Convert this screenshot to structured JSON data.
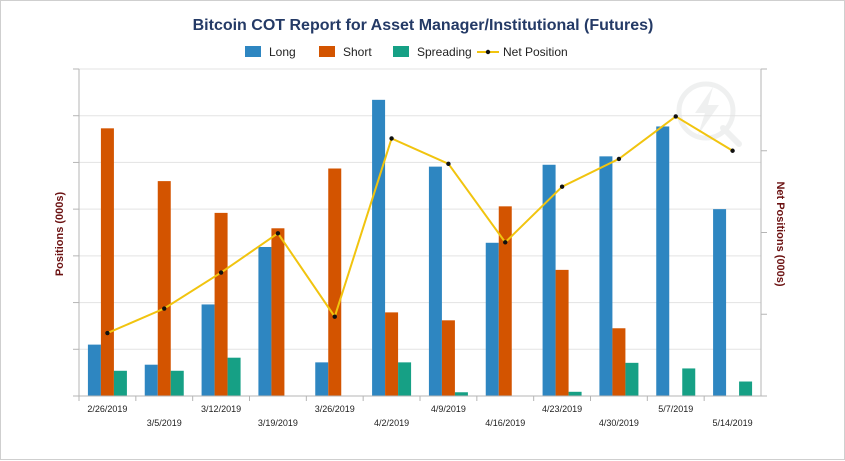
{
  "chart_data": {
    "type": "bar",
    "title": "Bitcoin COT Report for Asset Manager/Institutional (Futures)",
    "xlabel": "",
    "ylabel": "Positions (000s)",
    "y2label": "Net Positions (000s)",
    "categories": [
      "2/26/2019",
      "3/5/2019",
      "3/12/2019",
      "3/19/2019",
      "3/26/2019",
      "4/2/2019",
      "4/9/2019",
      "4/16/2019",
      "4/23/2019",
      "4/30/2019",
      "5/7/2019",
      "5/14/2019"
    ],
    "ylim": [
      0,
      7
    ],
    "y2lim": [
      -3,
      1
    ],
    "series": [
      {
        "name": "Long",
        "type": "bar",
        "color": "#2e86c1",
        "values": [
          1.1,
          0.67,
          1.96,
          3.19,
          0.72,
          6.34,
          4.91,
          3.28,
          4.95,
          5.13,
          5.77,
          4.0
        ]
      },
      {
        "name": "Short",
        "type": "bar",
        "color": "#d35400",
        "values": [
          5.73,
          4.6,
          3.92,
          3.59,
          4.87,
          1.79,
          1.62,
          4.06,
          2.7,
          1.45,
          0.0,
          0.0
        ]
      },
      {
        "name": "Spreading",
        "type": "bar",
        "color": "#16a085",
        "values": [
          0.54,
          0.54,
          0.82,
          0.0,
          0.0,
          0.72,
          0.08,
          0.0,
          0.09,
          0.71,
          0.59,
          0.31
        ]
      },
      {
        "name": "Net Position",
        "type": "line",
        "color": "#f1c40f",
        "axis": "right",
        "values": [
          -2.23,
          -1.93,
          -1.49,
          -1.01,
          -2.03,
          0.15,
          -0.16,
          -1.12,
          -0.44,
          -0.1,
          0.42,
          0.0
        ]
      }
    ],
    "grid": true,
    "legend": "top-center",
    "watermark_icon": "lightning-bolt-logo-icon"
  }
}
